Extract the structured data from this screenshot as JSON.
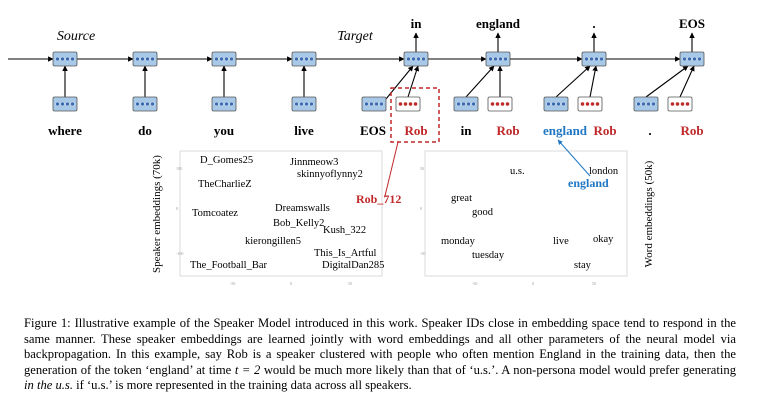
{
  "labels": {
    "source": "Source",
    "target": "Target"
  },
  "top_words": [
    "in",
    "england",
    ".",
    "EOS"
  ],
  "bottom_words": [
    "where",
    "do",
    "you",
    "live",
    "EOS",
    "Rob",
    "in",
    "Rob",
    "england",
    "Rob",
    ".",
    "Rob"
  ],
  "speaker_plot": {
    "ylabel": "Speaker embeddings (70k)",
    "highlight": "Rob_712",
    "names": [
      "D_Gomes25",
      "Jinnmeow3",
      "skinnyoflynny2",
      "TheCharlieZ",
      "Dreamswalls",
      "Tomcoatez",
      "Bob_Kelly2",
      "kierongillen5",
      "Kush_322",
      "This_Is_Artful",
      "The_Football_Bar",
      "DigitalDan285"
    ]
  },
  "word_plot": {
    "ylabel": "Word embeddings (50k)",
    "highlight": "england",
    "words": [
      "u.s.",
      "london",
      "great",
      "good",
      "monday",
      "live",
      "okay",
      "tuesday",
      "stay"
    ]
  },
  "caption": {
    "p1": "Figure 1: Illustrative example of the Speaker Model introduced in this work. Speaker IDs close in embedding space tend to respond in the same manner. These speaker embeddings are learned jointly with word embeddings and all other parameters of the neural model via backpropagation. In this example, say Rob is a speaker clustered with people who often mention England in the training data, then the generation of the token ‘england’ at time ",
    "t_eq": "t = 2",
    "p2": " would be much more likely than that of ‘u.s.’. A non-persona model would prefer generating ",
    "italic": "in the u.s.",
    "p3": " if ‘u.s.’ is more represented in the training data across all speakers."
  },
  "colors": {
    "rob": "#c0282a",
    "england": "#1f77c4",
    "box": "#a8c8e8",
    "dot": "#3a6ab0"
  }
}
